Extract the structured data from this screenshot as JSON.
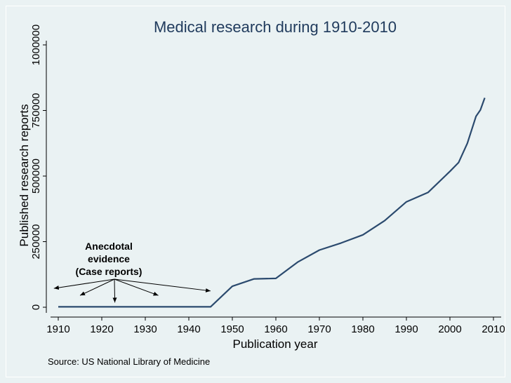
{
  "chart_data": {
    "type": "line",
    "title": "Medical research during 1910-2010",
    "xlabel": "Publication year",
    "ylabel": "Published research reports",
    "xlim": [
      1910,
      2010
    ],
    "ylim": [
      0,
      1000000
    ],
    "grid": false,
    "x_ticks": [
      "1910",
      "1920",
      "1930",
      "1940",
      "1950",
      "1960",
      "1970",
      "1980",
      "1990",
      "2000",
      "2010"
    ],
    "x_tick_values": [
      1910,
      1920,
      1930,
      1940,
      1950,
      1960,
      1970,
      1980,
      1990,
      2000,
      2010
    ],
    "y_ticks": [
      "0",
      "250000",
      "500000",
      "750000",
      "1000000"
    ],
    "y_tick_values": [
      0,
      250000,
      500000,
      750000,
      1000000
    ],
    "series": [
      {
        "name": "Published research reports",
        "color": "#2b4a6e",
        "points": [
          [
            1910,
            1500
          ],
          [
            1945,
            1500
          ],
          [
            1950,
            80000
          ],
          [
            1955,
            108000
          ],
          [
            1960,
            110000
          ],
          [
            1965,
            172000
          ],
          [
            1970,
            218000
          ],
          [
            1975,
            245000
          ],
          [
            1980,
            276000
          ],
          [
            1985,
            330000
          ],
          [
            1990,
            402000
          ],
          [
            1995,
            438000
          ],
          [
            2000,
            518000
          ],
          [
            2002,
            552000
          ],
          [
            2004,
            625000
          ],
          [
            2006,
            728000
          ],
          [
            2007,
            752000
          ],
          [
            2008,
            798000
          ]
        ]
      }
    ],
    "annotation": {
      "lines": [
        "Anecdotal",
        "evidence",
        "(Case reports)"
      ],
      "arrow_targets_year": [
        1909,
        1915,
        1923,
        1933,
        1945
      ],
      "arrow_targets_value": [
        72000,
        45000,
        18000,
        45000,
        62000
      ]
    },
    "source": "Source: US National Library of Medicine"
  }
}
